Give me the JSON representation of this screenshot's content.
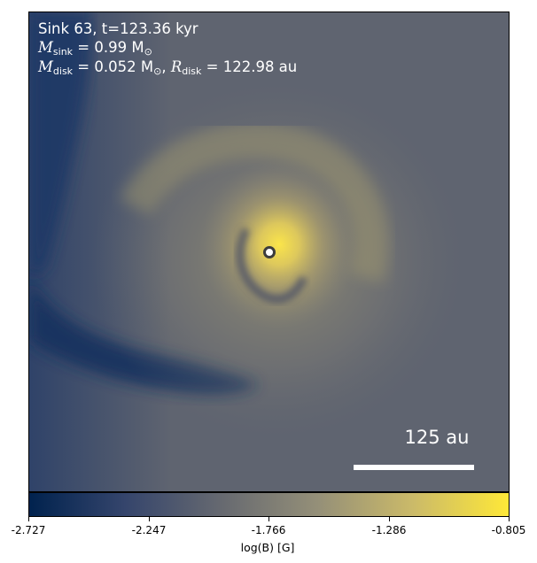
{
  "panel": {
    "line1": "Sink 63, t=123.36 kyr",
    "m_sink_sym": "M",
    "m_sink_sub": "sink",
    "m_sink_val": " = 0.99 M",
    "m_sink_unit_sub": "⊙",
    "m_disk_sym": "M",
    "m_disk_sub": "disk",
    "m_disk_val": " = 0.052 M",
    "m_disk_unit_sub": "⊙",
    "r_disk_sep": ", ",
    "r_disk_sym": "R",
    "r_disk_sub": "disk",
    "r_disk_val": " = 122.98 au",
    "scale_bar_label": "125 au"
  },
  "colorbar": {
    "label": "log(B) [G]",
    "ticks": [
      "-2.727",
      "-2.247",
      "-1.766",
      "-1.286",
      "-0.805"
    ],
    "colormap": "cividis",
    "colors": [
      "#00224e",
      "#35456c",
      "#666970",
      "#948f78",
      "#cbba69",
      "#fee838"
    ]
  },
  "image": {
    "colors": {
      "background": "#5d626f",
      "dark_lane": "#0f2d5c",
      "bright_core": "#fbe54a",
      "sink_marker": "#3d3d3d"
    }
  }
}
